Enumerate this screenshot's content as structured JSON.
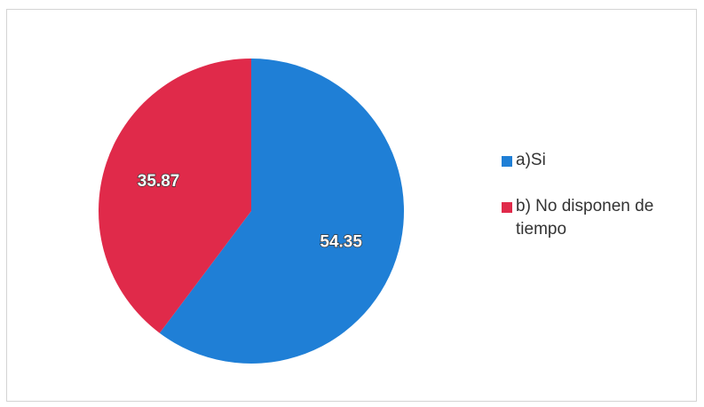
{
  "chart_data": {
    "type": "pie",
    "slices": [
      {
        "label": "a)Si",
        "value": 54.35,
        "display": "54.35",
        "color": "#1f7fd6"
      },
      {
        "label": "b) No disponen de tiempo",
        "value": 35.87,
        "display": "35.87",
        "color": "#e02a4a"
      }
    ],
    "legend_position": "right"
  }
}
